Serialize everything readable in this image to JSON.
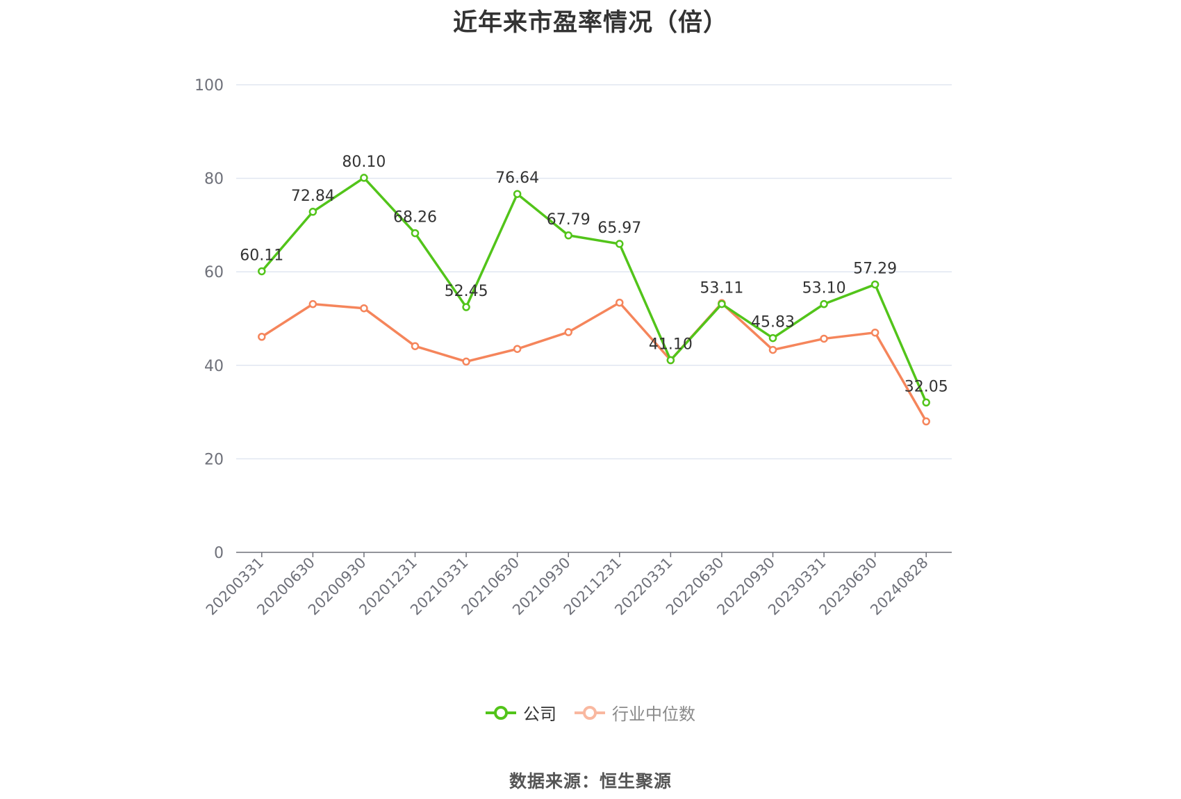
{
  "chart_data": {
    "type": "line",
    "title": "近年来市盈率情况（倍）",
    "categories": [
      "20200331",
      "20200630",
      "20200930",
      "20201231",
      "20210331",
      "20210630",
      "20210930",
      "20211231",
      "20220331",
      "20220630",
      "20220930",
      "20230331",
      "20230630",
      "20240828"
    ],
    "series": [
      {
        "name": "公司",
        "color": "#52c41a",
        "values": [
          60.11,
          72.84,
          80.1,
          68.26,
          52.45,
          76.64,
          67.79,
          65.97,
          41.1,
          53.11,
          45.83,
          53.1,
          57.29,
          32.05
        ],
        "labels": [
          "60.11",
          "72.84",
          "80.10",
          "68.26",
          "52.45",
          "76.64",
          "67.79",
          "65.97",
          "41.10",
          "53.11",
          "45.83",
          "53.10",
          "57.29",
          "32.05"
        ]
      },
      {
        "name": "行业中位数",
        "color": "#f5855b",
        "legend_color": "#f9b8a0",
        "values": [
          46.1,
          53.1,
          52.2,
          44.1,
          40.8,
          43.5,
          47.1,
          53.4,
          41.1,
          53.3,
          43.3,
          45.7,
          47.0,
          28.0
        ]
      }
    ],
    "ylim": [
      0,
      100
    ],
    "yticks": [
      "0",
      "20",
      "40",
      "60",
      "80",
      "100"
    ],
    "grid": true,
    "legend_position": "bottom"
  },
  "source_note": "数据来源：恒生聚源"
}
